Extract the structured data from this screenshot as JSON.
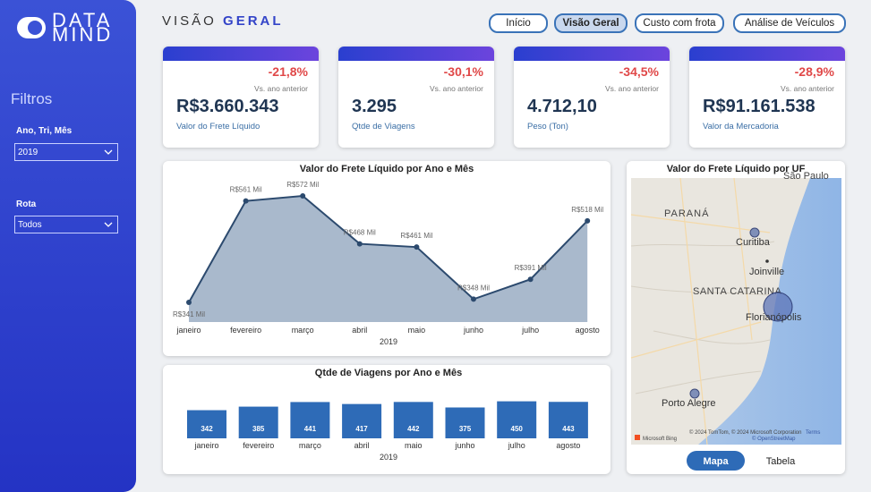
{
  "brand": {
    "line1": "DATA",
    "line2": "MIND"
  },
  "header": {
    "title_light": "VISÃO",
    "title_bold": "GERAL"
  },
  "nav": {
    "items": [
      "Início",
      "Visão Geral",
      "Custo com frota",
      "Análise de Veículos"
    ],
    "active": 1
  },
  "filters": {
    "title": "Filtros",
    "fields": [
      {
        "label": "Ano, Tri, Mês",
        "value": "2019"
      },
      {
        "label": "Rota",
        "value": "Todos"
      }
    ]
  },
  "kpis": [
    {
      "change": "-21,8%",
      "compare": "Vs. ano anterior",
      "value": "R$3.660.343",
      "label": "Valor do Frete Líquido"
    },
    {
      "change": "-30,1%",
      "compare": "Vs. ano anterior",
      "value": "3.295",
      "label": "Qtde de Viagens"
    },
    {
      "change": "-34,5%",
      "compare": "Vs. ano anterior",
      "value": "4.712,10",
      "label": "Peso (Ton)"
    },
    {
      "change": "-28,9%",
      "compare": "Vs. ano anterior",
      "value": "R$91.161.538",
      "label": "Valor da Mercadoria"
    }
  ],
  "chart_data": [
    {
      "type": "area",
      "title": "Valor do Frete Líquido por Ano e Mês",
      "x_label": "2019",
      "categories": [
        "janeiro",
        "fevereiro",
        "março",
        "abril",
        "maio",
        "junho",
        "julho",
        "agosto"
      ],
      "values": [
        341,
        561,
        572,
        468,
        461,
        348,
        391,
        518
      ],
      "value_labels": [
        "R$341 Mil",
        "R$561 Mil",
        "R$572 Mil",
        "R$468 Mil",
        "R$461 Mil",
        "R$348 Mil",
        "R$391 Mil",
        "R$518 Mil"
      ],
      "color": "#2c4a6e",
      "fill": "#a9b9cc"
    },
    {
      "type": "bar",
      "title": "Qtde de Viagens por Ano e Mês",
      "x_label": "2019",
      "categories": [
        "janeiro",
        "fevereiro",
        "março",
        "abril",
        "maio",
        "junho",
        "julho",
        "agosto"
      ],
      "values": [
        342,
        385,
        441,
        417,
        442,
        375,
        450,
        443
      ],
      "color": "#2e6bb7"
    }
  ],
  "map": {
    "title": "Valor do Frete Líquido por UF",
    "labels": {
      "top": "São Paulo",
      "state1": "PARANÁ",
      "city1": "Curitiba",
      "city2": "Joinville",
      "state2": "SANTA CATARINA",
      "city3": "Florianópolis",
      "city4": "Porto Alegre"
    },
    "attribution": "© 2024 TomTom, © 2024 Microsoft Corporation",
    "terms": "Terms",
    "osm": "© OpenStreetMap",
    "logo": "Microsoft Bing",
    "tabs": [
      "Mapa",
      "Tabela"
    ]
  }
}
